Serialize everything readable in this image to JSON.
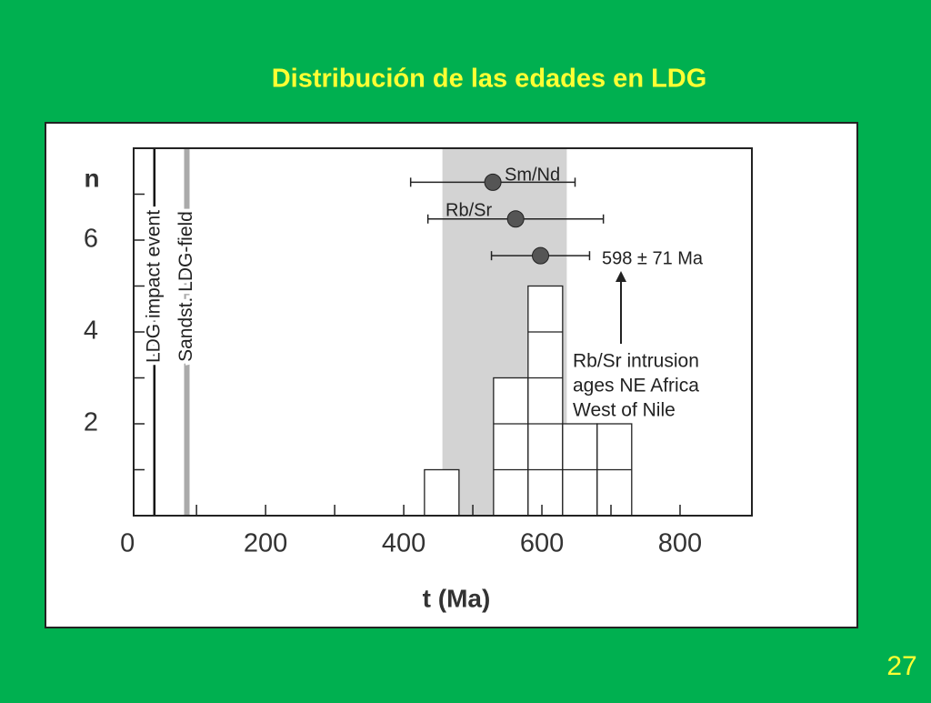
{
  "title": "Distribución de las edades en LDG",
  "page_number": "27",
  "chart_data": {
    "type": "histogram",
    "bins": [
      430,
      480,
      530,
      580,
      630,
      680,
      730
    ],
    "counts": [
      1,
      0,
      3,
      5,
      2,
      2
    ],
    "color": "#ffffff",
    "xlabel": "t (Ma)",
    "ylabel": "n",
    "xlim": [
      9,
      904
    ],
    "ylim": [
      0,
      8
    ],
    "xticks": [
      0,
      200,
      400,
      600,
      800
    ],
    "xminor": [
      100,
      300,
      500,
      700
    ],
    "yticks": [
      2,
      4,
      6
    ],
    "yminor": [
      1,
      3,
      5,
      7
    ],
    "shaded_range": [
      456,
      636
    ],
    "shade_color": "#d3d3d3",
    "reference_lines": [
      {
        "label": "LDG impact event",
        "x": 39,
        "color": "#111111"
      },
      {
        "label": "Sandst. LDG-field",
        "x": 86,
        "color": "#aaaaaa"
      }
    ],
    "points": [
      {
        "label": "Sm/Nd",
        "x": 529,
        "xerr": 119,
        "y": 7.26
      },
      {
        "label": "Rb/Sr",
        "x": 562,
        "xerr": 127,
        "y": 6.46
      },
      {
        "label": "598 ± 71 Ma",
        "x": 598,
        "xerr": 71,
        "y": 5.66
      }
    ],
    "annotation": [
      "Rb/Sr intrusion",
      "ages NE Africa",
      "West of Nile"
    ]
  }
}
